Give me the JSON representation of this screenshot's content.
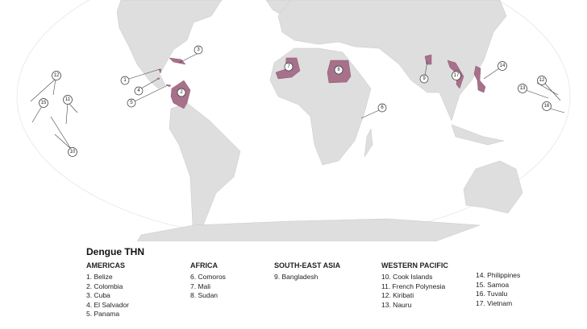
{
  "legend": {
    "title": "Dengue THN",
    "regions": [
      {
        "name": "AMERICAS",
        "items": [
          "1. Belize",
          "2. Colombia",
          "3. Cuba",
          "4. El Salvador",
          "5. Panama"
        ]
      },
      {
        "name": "AFRICA",
        "items": [
          "6. Comoros",
          "7. Mali",
          "8. Sudan"
        ]
      },
      {
        "name": "SOUTH-EAST ASIA",
        "items": [
          "9. Bangladesh"
        ]
      },
      {
        "name": "WESTERN PACIFIC",
        "items": [
          "10. Cook Islands",
          "11. French Polynesia",
          "12. Kiribati",
          "13. Nauru"
        ]
      },
      {
        "name": "",
        "items": [
          "14. Philippines",
          "15. Samoa",
          "16. Tuvalu",
          "17. Vietnam"
        ]
      }
    ]
  },
  "callouts": [
    "1",
    "2",
    "3",
    "4",
    "5",
    "6",
    "7",
    "8",
    "9",
    "10",
    "11",
    "12",
    "12",
    "13",
    "14",
    "15",
    "16",
    "17"
  ],
  "colors": {
    "land": "#dedede",
    "highlight": "#a7708b",
    "ocean": "#ffffff"
  }
}
